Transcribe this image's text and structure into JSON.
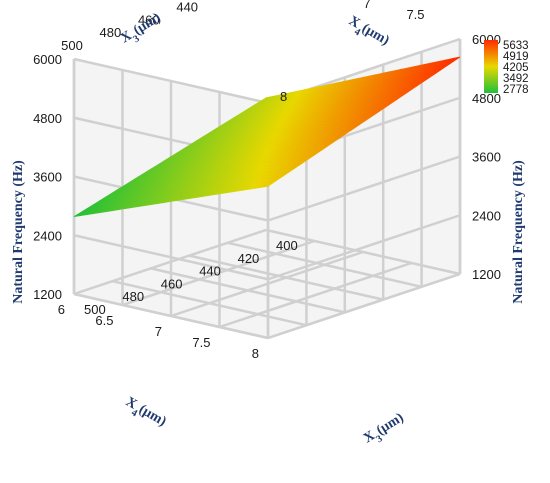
{
  "chart_data": {
    "type": "surface3d",
    "title": "",
    "x3_axis": {
      "label": "X3(μm)",
      "range": [
        400,
        500
      ],
      "ticks": [
        400,
        420,
        440,
        460,
        480,
        500
      ]
    },
    "x4_axis": {
      "label": "X4(μm)",
      "range": [
        6,
        8
      ],
      "ticks": [
        6,
        6.5,
        7,
        7.5,
        8
      ]
    },
    "z_axis": {
      "label": "Natural Frequency (Hz)",
      "range": [
        1200,
        6000
      ],
      "ticks": [
        1200,
        2400,
        3600,
        4800,
        6000
      ]
    },
    "grid": true,
    "surface": {
      "x3": [
        400,
        500
      ],
      "x4": [
        6,
        8
      ],
      "z": [
        [
          3900,
          2780
        ],
        [
          5633,
          4300
        ]
      ]
    },
    "colorbar": {
      "placement": "top-right",
      "ticks": [
        5633,
        4919,
        4205,
        3492,
        2778
      ],
      "colors": [
        "#ff2a00",
        "#e8d800",
        "#1fc03a"
      ]
    }
  }
}
